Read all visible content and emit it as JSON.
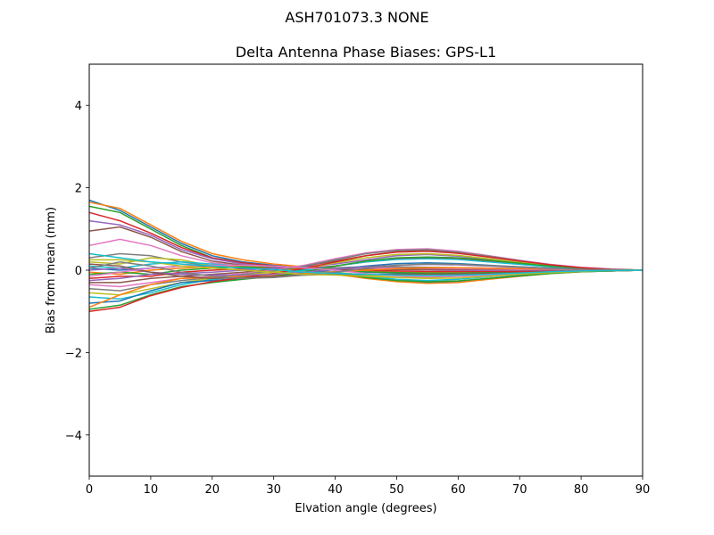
{
  "figure": {
    "suptitle_left": "ASH701073.3",
    "suptitle_right": "NONE"
  },
  "chart_data": {
    "type": "line",
    "title": "Delta Antenna Phase Biases: GPS-L1",
    "xlabel": "Elvation angle (degrees)",
    "ylabel": "Bias from mean (mm)",
    "xlim": [
      0,
      90
    ],
    "ylim": [
      -5,
      5
    ],
    "xticks": [
      0,
      10,
      20,
      30,
      40,
      50,
      60,
      70,
      80,
      90
    ],
    "yticks": [
      -4,
      -2,
      0,
      2,
      4
    ],
    "ytick_labels": [
      "−4",
      "−2",
      "0",
      "2",
      "4"
    ],
    "grid": false,
    "x": [
      0,
      5,
      10,
      15,
      20,
      25,
      30,
      35,
      40,
      45,
      50,
      55,
      60,
      65,
      70,
      75,
      80,
      85,
      90
    ],
    "colors": [
      "#1f77b4",
      "#ff7f0e",
      "#2ca02c",
      "#d62728",
      "#9467bd",
      "#8c564b",
      "#e377c2",
      "#7f7f7f",
      "#bcbd22",
      "#17becf"
    ],
    "series": [
      {
        "values": [
          1.7,
          1.45,
          1.05,
          0.65,
          0.35,
          0.2,
          0.12,
          0.05,
          0.0,
          -0.05,
          -0.07,
          -0.08,
          -0.07,
          -0.06,
          -0.05,
          -0.04,
          -0.03,
          -0.02,
          0.0
        ]
      },
      {
        "values": [
          1.65,
          1.5,
          1.1,
          0.7,
          0.4,
          0.25,
          0.15,
          0.08,
          0.02,
          -0.02,
          -0.05,
          -0.06,
          -0.06,
          -0.05,
          -0.05,
          -0.04,
          -0.03,
          -0.02,
          0.0
        ]
      },
      {
        "values": [
          1.55,
          1.4,
          1.0,
          0.6,
          0.3,
          0.15,
          0.08,
          0.02,
          0.0,
          -0.04,
          -0.06,
          -0.07,
          -0.07,
          -0.06,
          -0.05,
          -0.04,
          -0.03,
          -0.02,
          0.0
        ]
      },
      {
        "values": [
          1.4,
          1.2,
          0.9,
          0.55,
          0.3,
          0.18,
          0.1,
          0.05,
          0.02,
          0.0,
          -0.02,
          -0.03,
          -0.03,
          -0.03,
          -0.03,
          -0.02,
          -0.02,
          -0.01,
          0.0
        ]
      },
      {
        "values": [
          1.2,
          1.1,
          0.85,
          0.5,
          0.28,
          0.15,
          0.08,
          0.04,
          0.03,
          0.02,
          0.01,
          0.01,
          0.0,
          0.0,
          0.0,
          0.0,
          0.0,
          0.0,
          0.0
        ]
      },
      {
        "values": [
          0.95,
          1.05,
          0.8,
          0.45,
          0.22,
          0.12,
          0.06,
          0.03,
          0.02,
          0.02,
          0.02,
          0.02,
          0.02,
          0.02,
          0.01,
          0.01,
          0.01,
          0.0,
          0.0
        ]
      },
      {
        "values": [
          0.6,
          0.75,
          0.6,
          0.35,
          0.18,
          0.1,
          0.05,
          0.05,
          0.05,
          0.05,
          0.05,
          0.05,
          0.04,
          0.03,
          0.02,
          0.02,
          0.01,
          0.01,
          0.0
        ]
      },
      {
        "values": [
          0.3,
          0.4,
          0.35,
          0.2,
          0.1,
          0.06,
          0.04,
          0.04,
          0.06,
          0.08,
          0.08,
          0.07,
          0.06,
          0.05,
          0.04,
          0.03,
          0.02,
          0.01,
          0.0
        ]
      },
      {
        "values": [
          0.2,
          0.15,
          0.3,
          0.25,
          0.1,
          0.05,
          0.02,
          0.0,
          -0.05,
          -0.12,
          -0.18,
          -0.18,
          -0.15,
          -0.12,
          -0.08,
          -0.05,
          -0.03,
          -0.01,
          0.0
        ]
      },
      {
        "values": [
          0.1,
          0.05,
          0.15,
          0.2,
          0.15,
          0.1,
          0.05,
          0.0,
          -0.05,
          -0.15,
          -0.22,
          -0.25,
          -0.22,
          -0.16,
          -0.1,
          -0.06,
          -0.03,
          -0.01,
          0.0
        ]
      },
      {
        "values": [
          0.05,
          0.0,
          0.05,
          0.1,
          0.1,
          0.08,
          0.04,
          0.0,
          -0.08,
          -0.18,
          -0.26,
          -0.3,
          -0.27,
          -0.2,
          -0.13,
          -0.07,
          -0.04,
          -0.02,
          0.0
        ]
      },
      {
        "values": [
          -0.05,
          -0.1,
          0.0,
          0.05,
          0.08,
          0.1,
          0.05,
          -0.02,
          -0.1,
          -0.2,
          -0.28,
          -0.32,
          -0.3,
          -0.22,
          -0.15,
          -0.08,
          -0.04,
          -0.02,
          0.0
        ]
      },
      {
        "values": [
          -0.1,
          -0.05,
          -0.1,
          0.0,
          0.05,
          0.08,
          0.05,
          0.0,
          -0.08,
          -0.18,
          -0.25,
          -0.28,
          -0.26,
          -0.2,
          -0.14,
          -0.08,
          -0.04,
          -0.02,
          0.0
        ]
      },
      {
        "values": [
          -0.2,
          -0.15,
          -0.15,
          -0.05,
          0.0,
          0.03,
          0.05,
          0.05,
          0.1,
          0.2,
          0.28,
          0.3,
          0.28,
          0.22,
          0.15,
          0.09,
          0.05,
          0.02,
          0.0
        ]
      },
      {
        "values": [
          -0.25,
          -0.2,
          -0.1,
          -0.08,
          -0.05,
          0.0,
          0.05,
          0.08,
          0.15,
          0.25,
          0.35,
          0.38,
          0.34,
          0.26,
          0.18,
          0.1,
          0.05,
          0.02,
          0.0
        ]
      },
      {
        "values": [
          -0.3,
          -0.3,
          -0.2,
          -0.15,
          -0.1,
          -0.05,
          0.02,
          0.1,
          0.22,
          0.35,
          0.45,
          0.48,
          0.42,
          0.32,
          0.22,
          0.13,
          0.06,
          0.02,
          0.0
        ]
      },
      {
        "values": [
          -0.35,
          -0.4,
          -0.3,
          -0.2,
          -0.15,
          -0.08,
          0.0,
          0.12,
          0.28,
          0.42,
          0.5,
          0.52,
          0.46,
          0.35,
          0.24,
          0.14,
          0.07,
          0.03,
          0.0
        ]
      },
      {
        "values": [
          -0.45,
          -0.5,
          -0.35,
          -0.25,
          -0.18,
          -0.1,
          -0.02,
          0.1,
          0.25,
          0.4,
          0.48,
          0.5,
          0.44,
          0.34,
          0.23,
          0.13,
          0.06,
          0.02,
          0.0
        ]
      },
      {
        "values": [
          -0.55,
          -0.6,
          -0.45,
          -0.3,
          -0.2,
          -0.12,
          -0.05,
          0.05,
          0.18,
          0.3,
          0.38,
          0.4,
          0.36,
          0.28,
          0.19,
          0.11,
          0.05,
          0.02,
          0.0
        ]
      },
      {
        "values": [
          -0.65,
          -0.7,
          -0.55,
          -0.35,
          -0.22,
          -0.15,
          -0.1,
          0.0,
          0.1,
          0.2,
          0.26,
          0.28,
          0.26,
          0.2,
          0.14,
          0.08,
          0.04,
          0.01,
          0.0
        ]
      },
      {
        "values": [
          -0.8,
          -0.75,
          -0.5,
          -0.3,
          -0.25,
          -0.2,
          -0.15,
          -0.08,
          0.02,
          0.1,
          0.16,
          0.18,
          0.16,
          0.12,
          0.08,
          0.05,
          0.02,
          0.01,
          0.0
        ]
      },
      {
        "values": [
          -0.9,
          -0.6,
          -0.35,
          -0.2,
          -0.18,
          -0.15,
          -0.12,
          -0.08,
          -0.04,
          0.0,
          0.04,
          0.06,
          0.06,
          0.05,
          0.04,
          0.03,
          0.02,
          0.01,
          0.0
        ]
      },
      {
        "values": [
          -0.95,
          -0.85,
          -0.6,
          -0.4,
          -0.3,
          -0.22,
          -0.15,
          -0.05,
          0.1,
          0.22,
          0.3,
          0.32,
          0.3,
          0.24,
          0.17,
          0.1,
          0.05,
          0.02,
          0.0
        ]
      },
      {
        "values": [
          -1.0,
          -0.9,
          -0.62,
          -0.42,
          -0.28,
          -0.18,
          -0.08,
          0.05,
          0.2,
          0.35,
          0.44,
          0.46,
          0.41,
          0.32,
          0.22,
          0.13,
          0.06,
          0.02,
          0.0
        ]
      },
      {
        "values": [
          0.0,
          0.05,
          -0.05,
          -0.1,
          -0.12,
          -0.12,
          -0.1,
          -0.05,
          0.02,
          0.08,
          0.12,
          0.14,
          0.13,
          0.1,
          0.07,
          0.04,
          0.02,
          0.01,
          0.0
        ]
      },
      {
        "values": [
          0.15,
          0.1,
          -0.05,
          -0.15,
          -0.2,
          -0.18,
          -0.15,
          -0.12,
          -0.1,
          -0.1,
          -0.1,
          -0.1,
          -0.09,
          -0.08,
          -0.06,
          -0.04,
          -0.02,
          -0.01,
          0.0
        ]
      },
      {
        "values": [
          -0.15,
          -0.05,
          0.05,
          0.1,
          0.12,
          0.12,
          0.1,
          0.06,
          0.0,
          -0.08,
          -0.14,
          -0.16,
          -0.15,
          -0.12,
          -0.08,
          -0.05,
          -0.02,
          -0.01,
          0.0
        ]
      },
      {
        "values": [
          0.05,
          0.2,
          0.1,
          -0.05,
          -0.15,
          -0.2,
          -0.18,
          -0.12,
          -0.05,
          0.05,
          0.12,
          0.15,
          0.14,
          0.11,
          0.08,
          0.05,
          0.02,
          0.01,
          0.0
        ]
      },
      {
        "values": [
          0.25,
          0.25,
          0.2,
          0.1,
          0.05,
          0.0,
          -0.05,
          -0.1,
          -0.12,
          -0.15,
          -0.18,
          -0.2,
          -0.19,
          -0.15,
          -0.1,
          -0.06,
          -0.03,
          -0.01,
          0.0
        ]
      },
      {
        "values": [
          0.4,
          0.3,
          0.2,
          0.15,
          0.1,
          0.05,
          0.02,
          -0.05,
          -0.08,
          -0.1,
          -0.12,
          -0.13,
          -0.12,
          -0.1,
          -0.07,
          -0.04,
          -0.02,
          -0.01,
          0.0
        ]
      }
    ]
  }
}
